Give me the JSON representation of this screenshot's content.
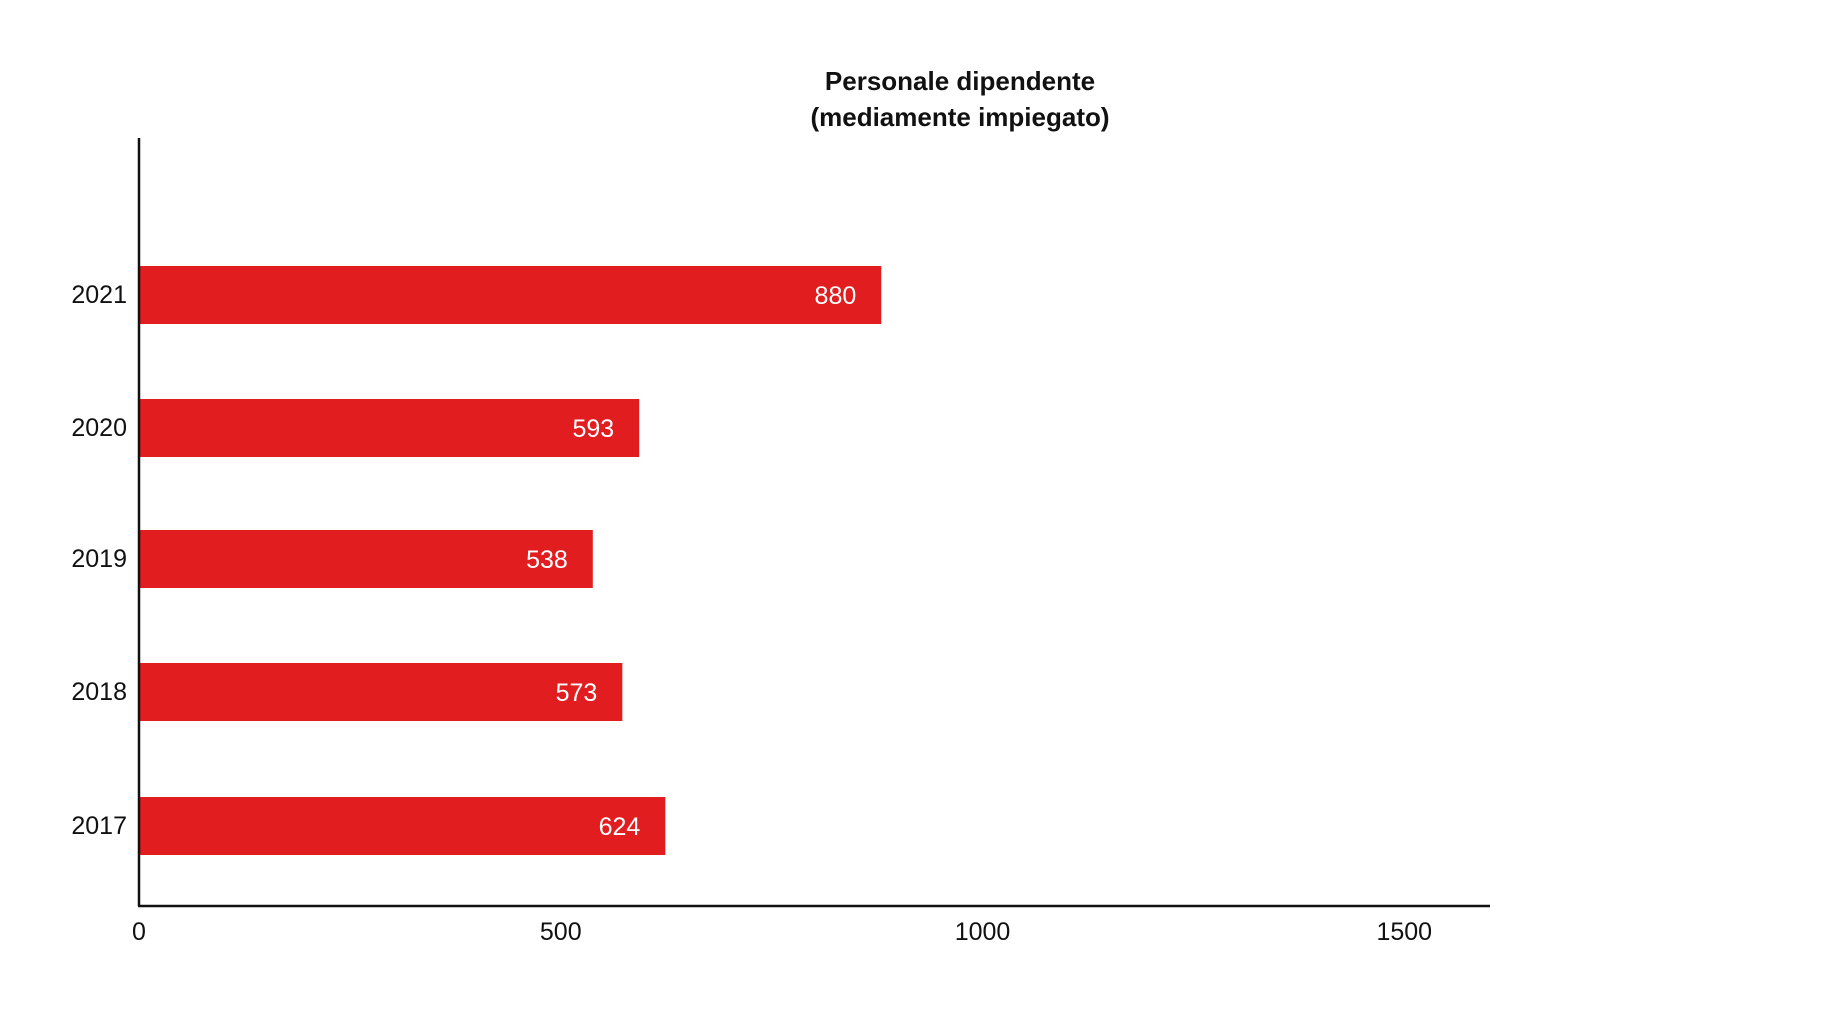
{
  "chart_data": {
    "type": "bar",
    "orientation": "horizontal",
    "title": "Personale dipendente",
    "subtitle": "(mediamente impiegato)",
    "categories": [
      "2021",
      "2020",
      "2019",
      "2018",
      "2017"
    ],
    "values": [
      880,
      593,
      538,
      573,
      624
    ],
    "data_labels": [
      "880",
      "593",
      "538",
      "573",
      "624"
    ],
    "x_ticks": [
      "0",
      "500",
      "1000",
      "1500"
    ],
    "xlim": [
      0,
      1600
    ],
    "grid": false,
    "legend": "none",
    "bar_color": "#e21d1f",
    "axis_color": "#111111"
  }
}
